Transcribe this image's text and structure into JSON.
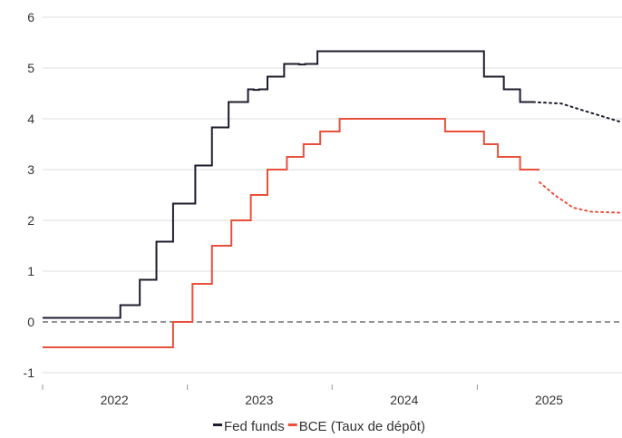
{
  "chart_data": {
    "type": "line",
    "title": "",
    "xlabel": "",
    "ylabel": "",
    "xlim": [
      "2021-09-01",
      "2025-09-01"
    ],
    "ylim": [
      -1,
      6
    ],
    "y_ticks": [
      -1,
      0,
      1,
      2,
      3,
      4,
      5,
      6
    ],
    "x_ticks": [
      {
        "label": "2022",
        "date": "2022-03-01"
      },
      {
        "label": "2023",
        "date": "2023-03-01"
      },
      {
        "label": "2024",
        "date": "2024-03-01"
      },
      {
        "label": "2025",
        "date": "2025-03-01"
      }
    ],
    "x_minor_ticks": [
      "2021-09-01",
      "2022-09-01",
      "2023-09-01",
      "2024-09-01"
    ],
    "grid": "horizontal",
    "zero_line": "dashed",
    "legend": {
      "position": "bottom-center"
    },
    "series": [
      {
        "name": "Fed funds",
        "color": "#1d1d2e",
        "style": "step",
        "points": [
          {
            "date": "2021-09-01",
            "value": 0.08
          },
          {
            "date": "2022-03-16",
            "value": 0.33
          },
          {
            "date": "2022-05-04",
            "value": 0.83
          },
          {
            "date": "2022-06-15",
            "value": 1.58
          },
          {
            "date": "2022-07-27",
            "value": 2.33
          },
          {
            "date": "2022-09-21",
            "value": 3.08
          },
          {
            "date": "2022-11-02",
            "value": 3.83
          },
          {
            "date": "2022-12-14",
            "value": 4.33
          },
          {
            "date": "2023-02-01",
            "value": 4.58
          },
          {
            "date": "2023-02-15",
            "value": 4.57
          },
          {
            "date": "2023-03-01",
            "value": 4.58
          },
          {
            "date": "2023-03-22",
            "value": 4.83
          },
          {
            "date": "2023-05-03",
            "value": 5.08
          },
          {
            "date": "2023-06-10",
            "value": 5.07
          },
          {
            "date": "2023-06-25",
            "value": 5.08
          },
          {
            "date": "2023-07-26",
            "value": 5.33
          },
          {
            "date": "2024-09-18",
            "value": 4.83
          },
          {
            "date": "2024-11-07",
            "value": 4.58
          },
          {
            "date": "2024-12-18",
            "value": 4.33
          },
          {
            "date": "2025-01-20",
            "value": 4.33
          }
        ],
        "forecast": [
          {
            "date": "2025-01-20",
            "value": 4.33
          },
          {
            "date": "2025-04-01",
            "value": 4.3
          },
          {
            "date": "2025-06-01",
            "value": 4.15
          },
          {
            "date": "2025-09-01",
            "value": 3.93
          }
        ]
      },
      {
        "name": "BCE (Taux de dépôt)",
        "color": "#e8503a",
        "style": "step",
        "points": [
          {
            "date": "2021-09-01",
            "value": -0.5
          },
          {
            "date": "2022-07-27",
            "value": 0.0
          },
          {
            "date": "2022-09-14",
            "value": 0.75
          },
          {
            "date": "2022-11-02",
            "value": 1.5
          },
          {
            "date": "2022-12-21",
            "value": 2.0
          },
          {
            "date": "2023-02-08",
            "value": 2.5
          },
          {
            "date": "2023-03-22",
            "value": 3.0
          },
          {
            "date": "2023-05-10",
            "value": 3.25
          },
          {
            "date": "2023-06-21",
            "value": 3.5
          },
          {
            "date": "2023-08-02",
            "value": 3.75
          },
          {
            "date": "2023-09-20",
            "value": 4.0
          },
          {
            "date": "2024-06-12",
            "value": 3.75
          },
          {
            "date": "2024-09-18",
            "value": 3.5
          },
          {
            "date": "2024-10-23",
            "value": 3.25
          },
          {
            "date": "2024-12-18",
            "value": 3.0
          },
          {
            "date": "2025-02-05",
            "value": 3.0
          }
        ],
        "forecast": [
          {
            "date": "2025-02-05",
            "value": 2.75
          },
          {
            "date": "2025-03-15",
            "value": 2.5
          },
          {
            "date": "2025-05-01",
            "value": 2.25
          },
          {
            "date": "2025-06-15",
            "value": 2.17
          },
          {
            "date": "2025-09-01",
            "value": 2.15
          }
        ]
      }
    ]
  }
}
